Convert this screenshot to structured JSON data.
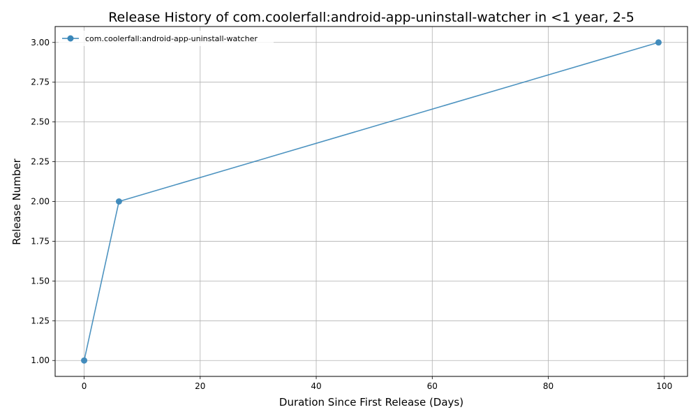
{
  "chart_data": {
    "type": "line",
    "title": "Release History of com.coolerfall:android-app-uninstall-watcher in <1 year, 2-5",
    "xlabel": "Duration Since First Release (Days)",
    "ylabel": "Release Number",
    "xlim": [
      -5,
      104
    ],
    "ylim": [
      0.9,
      3.1
    ],
    "xticks": [
      0,
      20,
      40,
      60,
      80,
      100
    ],
    "xtick_labels": [
      "0",
      "20",
      "40",
      "60",
      "80",
      "100"
    ],
    "yticks": [
      1.0,
      1.25,
      1.5,
      1.75,
      2.0,
      2.25,
      2.5,
      2.75,
      3.0
    ],
    "ytick_labels": [
      "1.00",
      "1.25",
      "1.50",
      "1.75",
      "2.00",
      "2.25",
      "2.50",
      "2.75",
      "3.00"
    ],
    "grid": true,
    "legend_position": "top-left",
    "series": [
      {
        "name": "com.coolerfall:android-app-uninstall-watcher",
        "color": "#3a87b9",
        "marker": "circle",
        "x": [
          0,
          6,
          99
        ],
        "y": [
          1,
          2,
          3
        ]
      }
    ]
  }
}
